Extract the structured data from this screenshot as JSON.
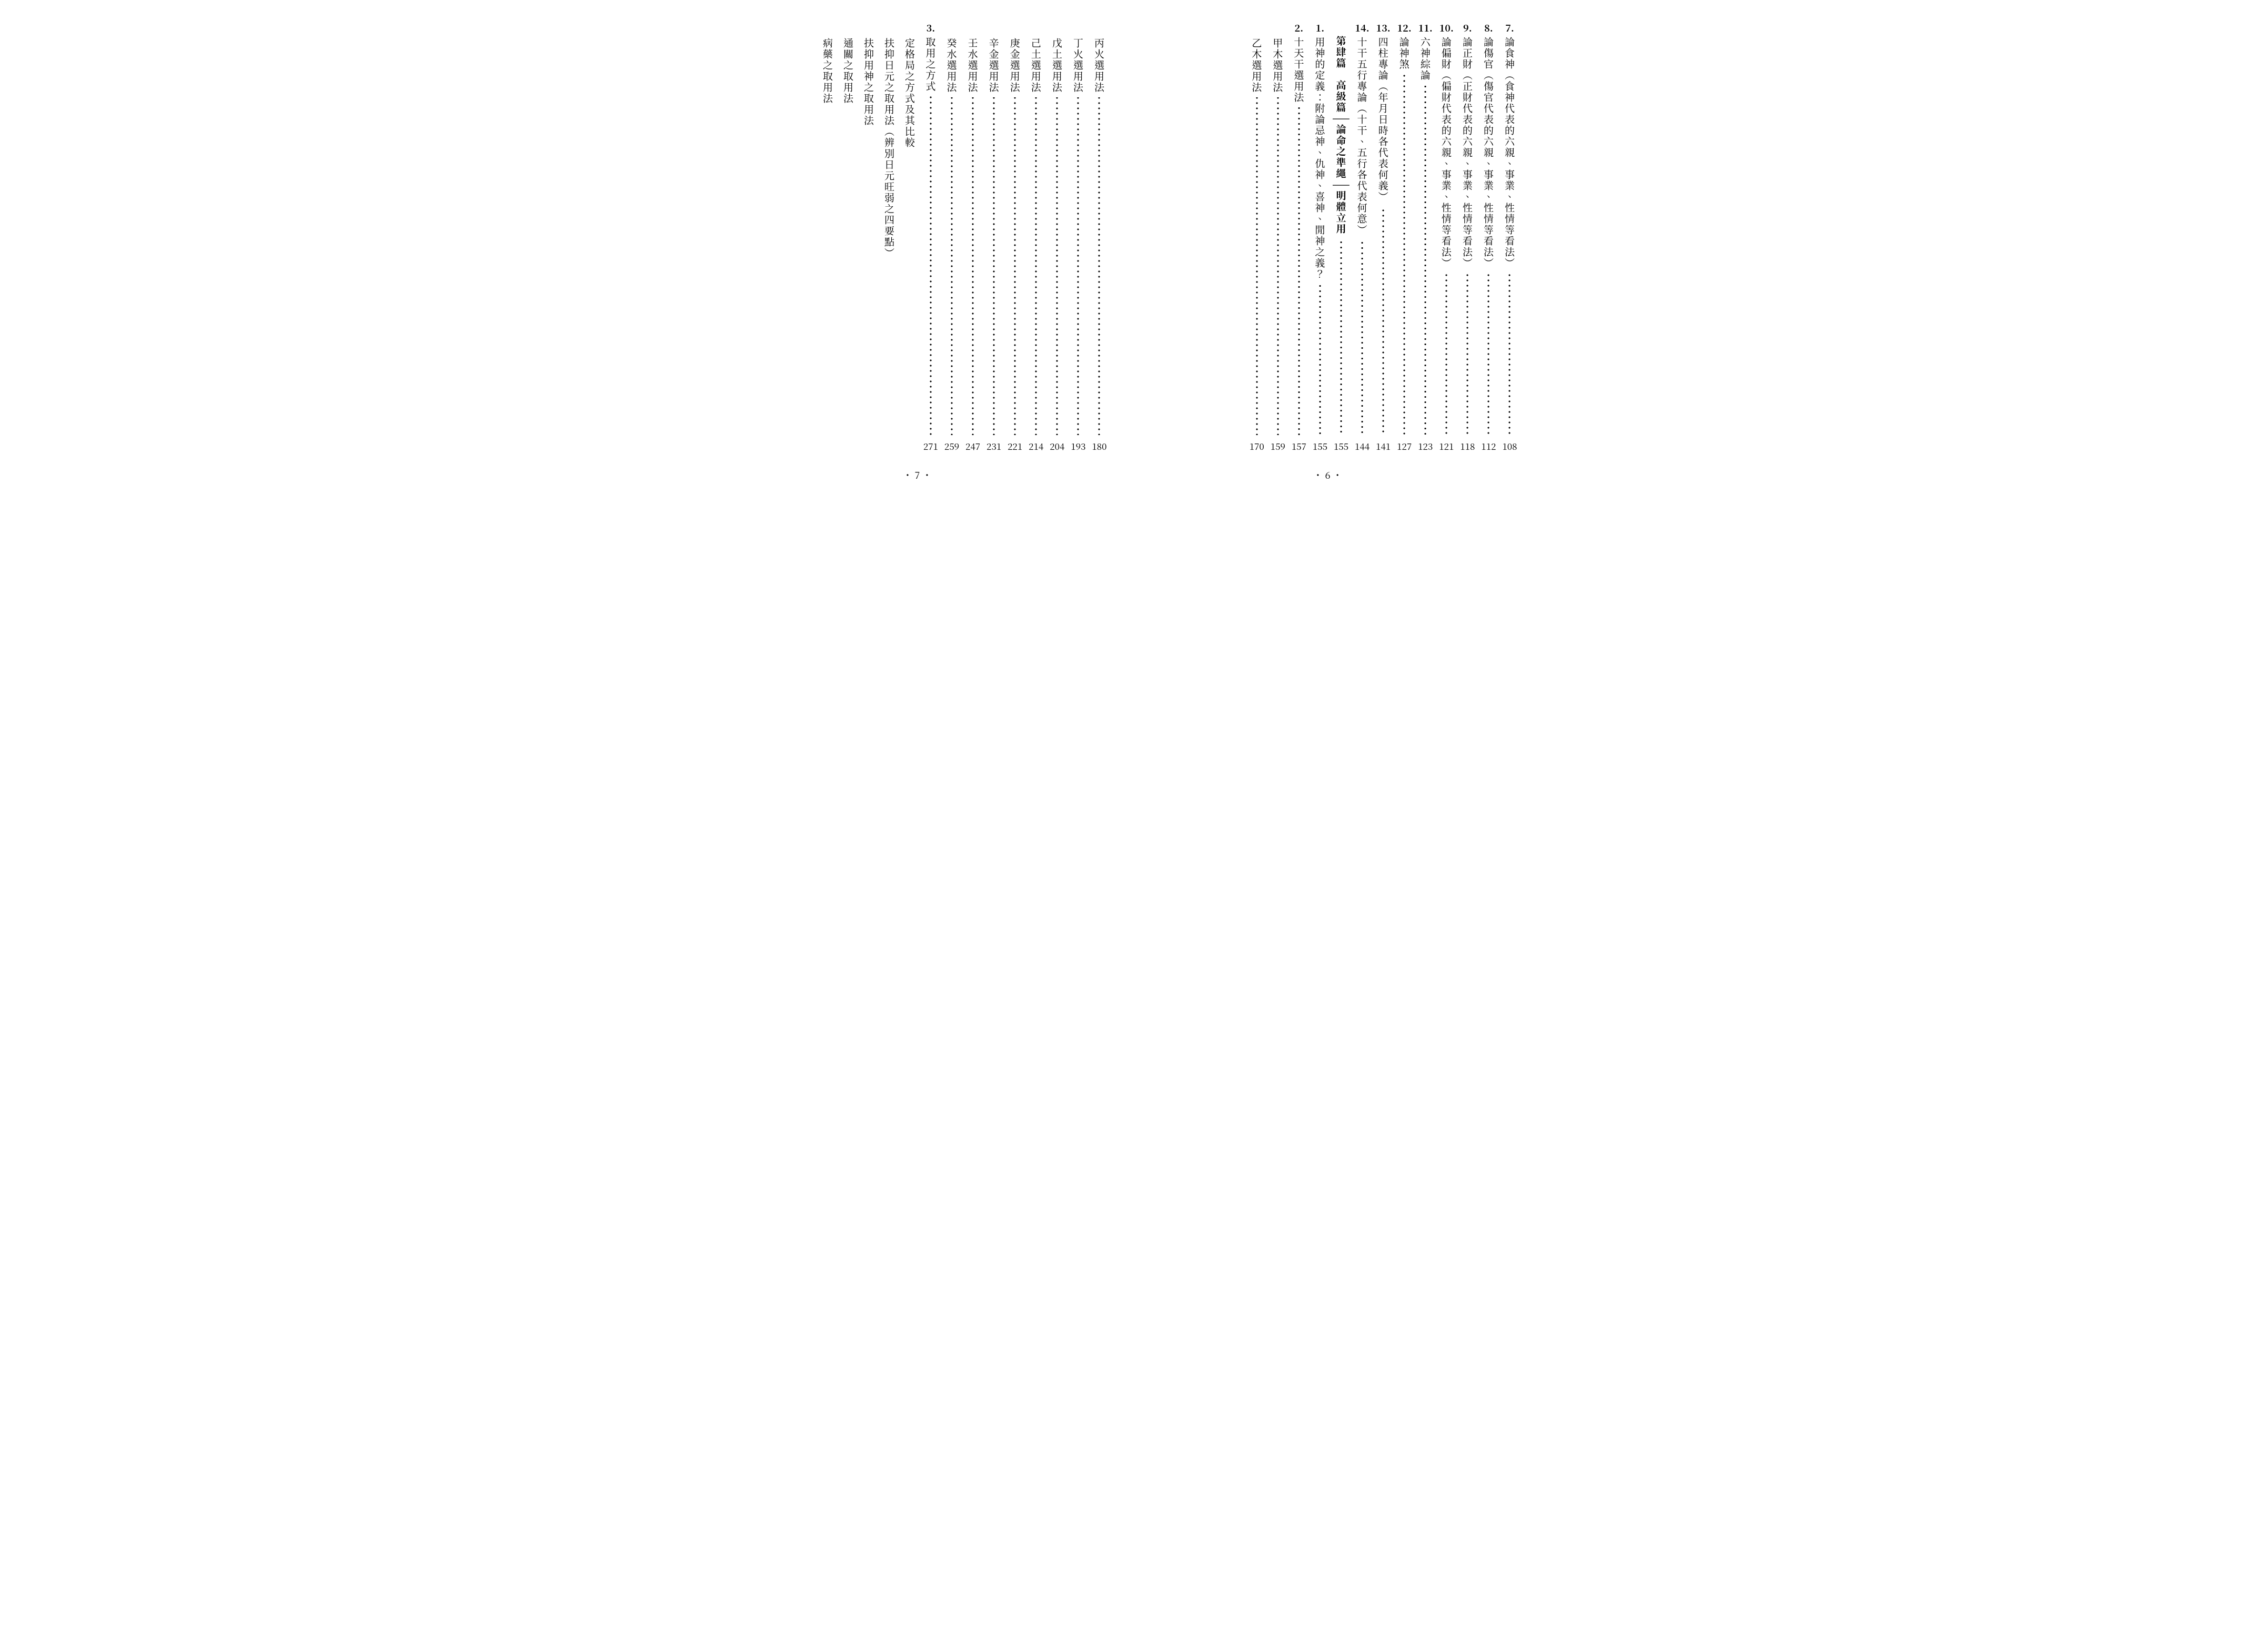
{
  "right_page": {
    "footer": "・ 6 ・",
    "entries": [
      {
        "num": "7.",
        "text": "論食神（食神代表的六親、事業、性情等看法）",
        "page": "108",
        "indent": false
      },
      {
        "num": "8.",
        "text": "論傷官（傷官代表的六親、事業、性情等看法）",
        "page": "112",
        "indent": false
      },
      {
        "num": "9.",
        "text": "論正財（正財代表的六親、事業、性情等看法）",
        "page": "118",
        "indent": false
      },
      {
        "num": "10.",
        "text": "論偏財（偏財代表的六親、事業、性情等看法）",
        "page": "121",
        "indent": false
      },
      {
        "num": "11.",
        "text": "六神綜論",
        "page": "123",
        "indent": false
      },
      {
        "num": "12.",
        "text": "論神煞",
        "page": "127",
        "indent": false
      },
      {
        "num": "13.",
        "text": "四柱專論（年月日時各代表何義）",
        "page": "141",
        "indent": false
      },
      {
        "num": "14.",
        "text": "十干五行專論（十干、五行各代表何意）",
        "page": "144",
        "indent": false
      },
      {
        "num": "",
        "text": "第肆篇　高級篇——論命之準繩——明體立用",
        "page": "155",
        "indent": false,
        "section": true
      },
      {
        "num": "1.",
        "text": "用神的定義：附論忌神、仇神、喜神、閒神之義？",
        "page": "155",
        "indent": false
      },
      {
        "num": "2.",
        "text": "十天干選用法",
        "page": "157",
        "indent": false
      },
      {
        "num": "",
        "text": "甲木選用法",
        "page": "159",
        "indent": true
      },
      {
        "num": "",
        "text": "乙木選用法",
        "page": "170",
        "indent": true
      }
    ]
  },
  "left_page": {
    "footer": "・ 7 ・",
    "entries": [
      {
        "num": "",
        "text": "丙火選用法",
        "page": "180",
        "indent": true
      },
      {
        "num": "",
        "text": "丁火選用法",
        "page": "193",
        "indent": true
      },
      {
        "num": "",
        "text": "戊土選用法",
        "page": "204",
        "indent": true
      },
      {
        "num": "",
        "text": "己土選用法",
        "page": "214",
        "indent": true
      },
      {
        "num": "",
        "text": "庚金選用法",
        "page": "221",
        "indent": true
      },
      {
        "num": "",
        "text": "辛金選用法",
        "page": "231",
        "indent": true
      },
      {
        "num": "",
        "text": "壬水選用法",
        "page": "247",
        "indent": true
      },
      {
        "num": "",
        "text": "癸水選用法",
        "page": "259",
        "indent": true
      },
      {
        "num": "3.",
        "text": "取用之方式",
        "page": "271",
        "indent": false
      },
      {
        "num": "",
        "text": "定格局之方式及其比較",
        "page": "",
        "indent": true
      },
      {
        "num": "",
        "text": "扶抑日元之取用法（辨別日元旺弱之四要點）",
        "page": "",
        "indent": true
      },
      {
        "num": "",
        "text": "扶抑用神之取用法",
        "page": "",
        "indent": true
      },
      {
        "num": "",
        "text": "通關之取用法",
        "page": "",
        "indent": true
      },
      {
        "num": "",
        "text": "病藥之取用法",
        "page": "",
        "indent": true
      }
    ]
  }
}
